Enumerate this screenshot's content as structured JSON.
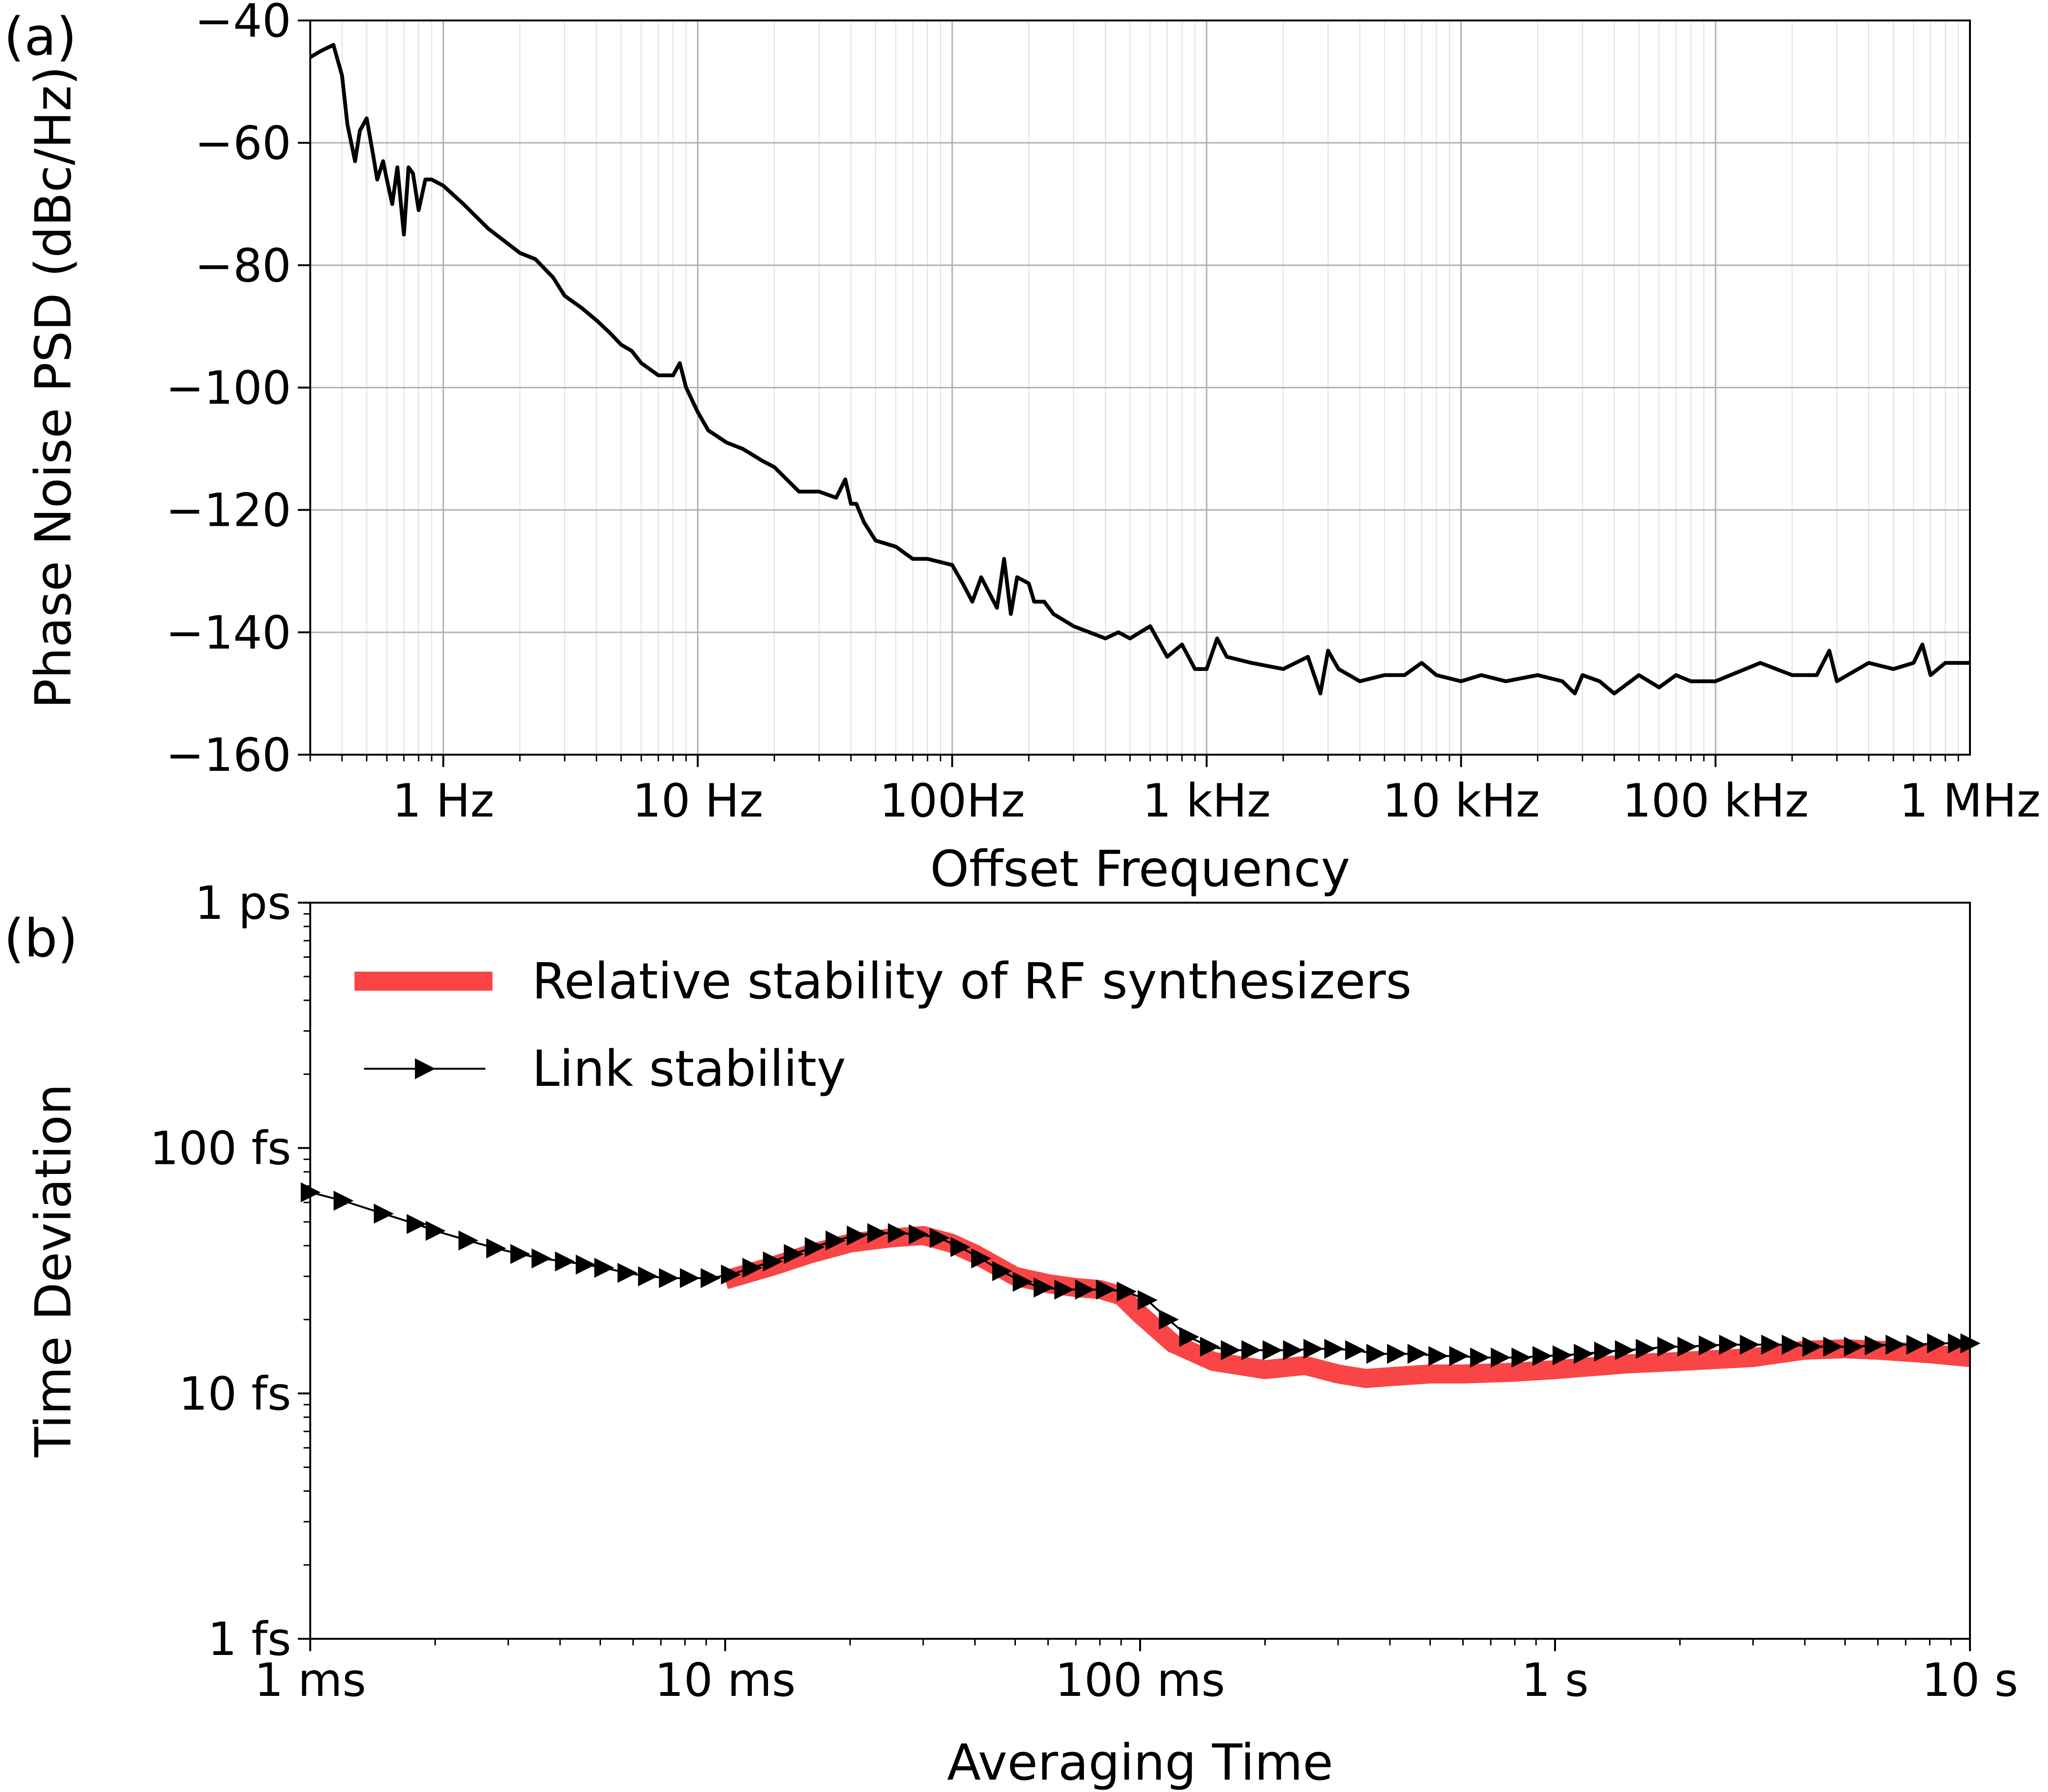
{
  "colors": {
    "psd_line": "#000000",
    "rf_band": "#f94545",
    "link_line": "#000000",
    "grid": "#b0b0b0",
    "minor_grid": "#e0e0e0"
  },
  "chart_data": [
    {
      "panel": "(a)",
      "type": "line",
      "xlabel": "Offset Frequency",
      "ylabel": "Phase Noise PSD (dBc/Hz)",
      "xscale": "log",
      "xlim": [
        0.3,
        1000000
      ],
      "ylim": [
        -160,
        -40
      ],
      "grid": true,
      "xticks": [
        {
          "value": 1,
          "label": "1 Hz"
        },
        {
          "value": 10,
          "label": "10 Hz"
        },
        {
          "value": 100,
          "label": "100Hz"
        },
        {
          "value": 1000,
          "label": "1 kHz"
        },
        {
          "value": 10000,
          "label": "10 kHz"
        },
        {
          "value": 100000,
          "label": "100 kHz"
        },
        {
          "value": 1000000,
          "label": "1 MHz"
        }
      ],
      "yticks": [
        {
          "value": -40,
          "label": "−40"
        },
        {
          "value": -60,
          "label": "−60"
        },
        {
          "value": -80,
          "label": "−80"
        },
        {
          "value": -100,
          "label": "−100"
        },
        {
          "value": -120,
          "label": "−120"
        },
        {
          "value": -140,
          "label": "−140"
        },
        {
          "value": -160,
          "label": "−160"
        }
      ],
      "series": [
        {
          "x": [
            0.3,
            0.33,
            0.37,
            0.4,
            0.42,
            0.45,
            0.47,
            0.5,
            0.53,
            0.55,
            0.58,
            0.6,
            0.63,
            0.66,
            0.7,
            0.73,
            0.76,
            0.8,
            0.85,
            0.9,
            1.0,
            1.2,
            1.5,
            2,
            2.3,
            2.7,
            3,
            3.5,
            4,
            4.5,
            5,
            5.5,
            6,
            7,
            8,
            8.5,
            9,
            10,
            11,
            13,
            15,
            18,
            20,
            25,
            30,
            35,
            38,
            40,
            42,
            45,
            50,
            60,
            70,
            80,
            100,
            110,
            120,
            130,
            150,
            160,
            170,
            180,
            200,
            210,
            230,
            250,
            300,
            400,
            450,
            500,
            600,
            700,
            800,
            900,
            1000,
            1100,
            1200,
            1500,
            2000,
            2500,
            2800,
            3000,
            3300,
            4000,
            5000,
            6000,
            7000,
            8000,
            10000,
            12000,
            15000,
            20000,
            25000,
            28000,
            30000,
            35000,
            40000,
            50000,
            60000,
            70000,
            80000,
            100000,
            150000,
            200000,
            250000,
            280000,
            300000,
            400000,
            500000,
            600000,
            650000,
            700000,
            800000,
            1000000
          ],
          "y": [
            -46,
            -45,
            -44,
            -49,
            -57,
            -63,
            -58,
            -56,
            -62,
            -66,
            -63,
            -66,
            -70,
            -64,
            -75,
            -64,
            -65,
            -71,
            -66,
            -66,
            -67,
            -70,
            -74,
            -78,
            -79,
            -82,
            -85,
            -87,
            -89,
            -91,
            -93,
            -94,
            -96,
            -98,
            -98,
            -96,
            -100,
            -104,
            -107,
            -109,
            -110,
            -112,
            -113,
            -117,
            -117,
            -118,
            -115,
            -119,
            -119,
            -122,
            -125,
            -126,
            -128,
            -128,
            -129,
            -132,
            -135,
            -131,
            -136,
            -128,
            -137,
            -131,
            -132,
            -135,
            -135,
            -137,
            -139,
            -141,
            -140,
            -141,
            -139,
            -144,
            -142,
            -146,
            -146,
            -141,
            -144,
            -145,
            -146,
            -144,
            -150,
            -143,
            -146,
            -148,
            -147,
            -147,
            -145,
            -147,
            -148,
            -147,
            -148,
            -147,
            -148,
            -150,
            -147,
            -148,
            -150,
            -147,
            -149,
            -147,
            -148,
            -148,
            -145,
            -147,
            -147,
            -143,
            -148,
            -145,
            -146,
            -145,
            -142,
            -147,
            -145,
            -145
          ]
        }
      ]
    },
    {
      "panel": "(b)",
      "type": "line",
      "xlabel": "Averaging Time",
      "ylabel": "Time Deviation",
      "xscale": "log",
      "yscale": "log",
      "xlim": [
        0.001,
        10
      ],
      "ylim": [
        1e-15,
        1e-12
      ],
      "grid": false,
      "legend_position": "top-left",
      "xticks": [
        {
          "value": 0.001,
          "label": "1 ms"
        },
        {
          "value": 0.01,
          "label": "10 ms"
        },
        {
          "value": 0.1,
          "label": "100 ms"
        },
        {
          "value": 1,
          "label": "1 s"
        },
        {
          "value": 10,
          "label": "10 s"
        }
      ],
      "yticks": [
        {
          "value": 1e-12,
          "label": "1 ps"
        },
        {
          "value": 1e-13,
          "label": "100 fs"
        },
        {
          "value": 1e-14,
          "label": "10 fs"
        },
        {
          "value": 1e-15,
          "label": "1 fs"
        }
      ],
      "series": [
        {
          "name": "Relative stability of RF synthesizers",
          "x": [
            0.01,
            0.013,
            0.016,
            0.02,
            0.025,
            0.03,
            0.035,
            0.04,
            0.05,
            0.06,
            0.07,
            0.08,
            0.09,
            0.1,
            0.12,
            0.15,
            0.2,
            0.25,
            0.3,
            0.35,
            0.4,
            0.5,
            0.6,
            0.8,
            1,
            1.5,
            2,
            3,
            4,
            5,
            6,
            8,
            10
          ],
          "y": [
            2.9e-14,
            3.3e-14,
            3.7e-14,
            4.1e-14,
            4.3e-14,
            4.4e-14,
            4.1e-14,
            3.7e-14,
            3e-14,
            2.8e-14,
            2.7e-14,
            2.65e-14,
            2.5e-14,
            2.1e-14,
            1.6e-14,
            1.35e-14,
            1.25e-14,
            1.3e-14,
            1.2e-14,
            1.15e-14,
            1.17e-14,
            1.2e-14,
            1.2e-14,
            1.22e-14,
            1.25e-14,
            1.32e-14,
            1.35e-14,
            1.4e-14,
            1.5e-14,
            1.52e-14,
            1.5e-14,
            1.45e-14,
            1.4e-14
          ]
        },
        {
          "name": "Link stability",
          "x": [
            0.001,
            0.0012,
            0.0015,
            0.0018,
            0.002,
            0.0024,
            0.0028,
            0.0032,
            0.0036,
            0.0041,
            0.0046,
            0.0051,
            0.0058,
            0.0065,
            0.0073,
            0.0082,
            0.0092,
            0.0103,
            0.0116,
            0.013,
            0.0146,
            0.0164,
            0.0184,
            0.0207,
            0.0232,
            0.026,
            0.0292,
            0.0328,
            0.0368,
            0.0413,
            0.0464,
            0.052,
            0.0584,
            0.0655,
            0.0735,
            0.0825,
            0.0926,
            0.104,
            0.117,
            0.131,
            0.147,
            0.165,
            0.185,
            0.208,
            0.233,
            0.261,
            0.293,
            0.329,
            0.37,
            0.415,
            0.465,
            0.522,
            0.586,
            0.658,
            0.738,
            0.828,
            0.93,
            1.04,
            1.17,
            1.31,
            1.47,
            1.65,
            1.86,
            2.08,
            2.34,
            2.62,
            2.94,
            3.31,
            3.71,
            4.16,
            4.67,
            5.24,
            5.88,
            6.6,
            7.41,
            8.31,
            9.33,
            10
          ],
          "y": [
            6.6e-14,
            6.1e-14,
            5.4e-14,
            4.9e-14,
            4.6e-14,
            4.2e-14,
            3.9e-14,
            3.7e-14,
            3.55e-14,
            3.45e-14,
            3.35e-14,
            3.25e-14,
            3.1e-14,
            3e-14,
            2.95e-14,
            2.95e-14,
            2.95e-14,
            3.05e-14,
            3.25e-14,
            3.45e-14,
            3.7e-14,
            3.95e-14,
            4.2e-14,
            4.4e-14,
            4.5e-14,
            4.5e-14,
            4.45e-14,
            4.3e-14,
            3.95e-14,
            3.55e-14,
            3.15e-14,
            2.85e-14,
            2.7e-14,
            2.65e-14,
            2.65e-14,
            2.65e-14,
            2.6e-14,
            2.4e-14,
            2e-14,
            1.7e-14,
            1.55e-14,
            1.5e-14,
            1.5e-14,
            1.5e-14,
            1.5e-14,
            1.52e-14,
            1.52e-14,
            1.5e-14,
            1.45e-14,
            1.45e-14,
            1.45e-14,
            1.42e-14,
            1.42e-14,
            1.4e-14,
            1.4e-14,
            1.4e-14,
            1.42e-14,
            1.43e-14,
            1.45e-14,
            1.48e-14,
            1.5e-14,
            1.52e-14,
            1.55e-14,
            1.55e-14,
            1.57e-14,
            1.58e-14,
            1.58e-14,
            1.58e-14,
            1.58e-14,
            1.55e-14,
            1.55e-14,
            1.55e-14,
            1.57e-14,
            1.58e-14,
            1.58e-14,
            1.6e-14,
            1.6e-14,
            1.6e-14
          ]
        }
      ]
    }
  ]
}
